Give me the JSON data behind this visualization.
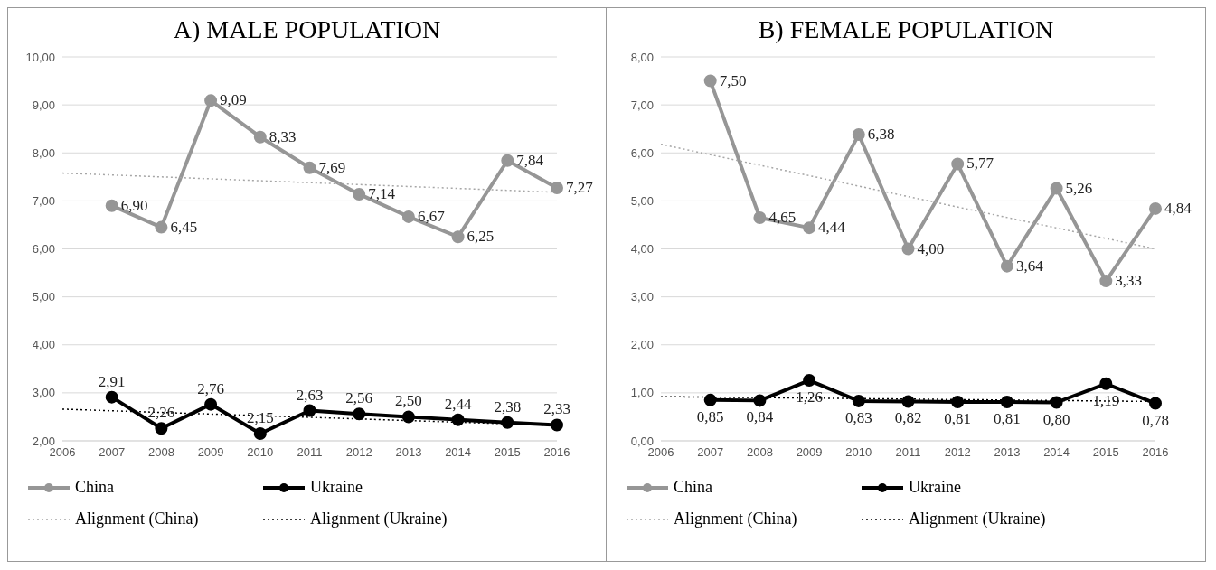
{
  "chart_data": [
    {
      "type": "line",
      "title": "A)  MALE POPULATION",
      "categories": [
        "2006",
        "2007",
        "2008",
        "2009",
        "2010",
        "2011",
        "2012",
        "2013",
        "2014",
        "2015",
        "2016"
      ],
      "ylim": [
        2,
        10
      ],
      "yticks": [
        {
          "value": 2,
          "label": "2,00"
        },
        {
          "value": 3,
          "label": "3,00"
        },
        {
          "value": 4,
          "label": "4,00"
        },
        {
          "value": 5,
          "label": "5,00"
        },
        {
          "value": 6,
          "label": "6,00"
        },
        {
          "value": 7,
          "label": "7,00"
        },
        {
          "value": 8,
          "label": "8,00"
        },
        {
          "value": 9,
          "label": "9,00"
        },
        {
          "value": 10,
          "label": "10,00"
        }
      ],
      "grid": "y",
      "legend": "bottom",
      "marker": "circle",
      "line_style": "solid",
      "series": [
        {
          "name": "China",
          "color": "#969696",
          "values": [
            null,
            6.9,
            6.45,
            9.09,
            8.33,
            7.69,
            7.14,
            6.67,
            6.25,
            7.84,
            7.27
          ],
          "value_labels": [
            null,
            "6,90",
            "6,45",
            "9,09",
            "8,33",
            "7,69",
            "7,14",
            "6,67",
            "6,25",
            "7,84",
            "7,27"
          ]
        },
        {
          "name": "Ukraine",
          "color": "#000000",
          "values": [
            null,
            2.91,
            2.26,
            2.76,
            2.15,
            2.63,
            2.56,
            2.5,
            2.44,
            2.38,
            2.33
          ],
          "value_labels": [
            null,
            "2,91",
            "2,26",
            "2,76",
            "2,15",
            "2,63",
            "2,56",
            "2,50",
            "2,44",
            "2,38",
            "2,33"
          ]
        },
        {
          "name": "Alignment (China)",
          "color": "#a6a6a6",
          "type": "line",
          "line_style": "dotted",
          "marker": "none",
          "values": [
            7.58,
            null,
            null,
            null,
            null,
            null,
            null,
            null,
            null,
            null,
            7.18
          ]
        },
        {
          "name": "Alignment (Ukraine)",
          "color": "#000000",
          "type": "line",
          "line_style": "dotted",
          "marker": "none",
          "values": [
            2.66,
            null,
            null,
            null,
            null,
            null,
            null,
            null,
            null,
            null,
            2.32
          ]
        }
      ]
    },
    {
      "type": "line",
      "title": "B)  FEMALE POPULATION",
      "categories": [
        "2006",
        "2007",
        "2008",
        "2009",
        "2010",
        "2011",
        "2012",
        "2013",
        "2014",
        "2015",
        "2016"
      ],
      "ylim": [
        0,
        8
      ],
      "yticks": [
        {
          "value": 0,
          "label": "0,00"
        },
        {
          "value": 1,
          "label": "1,00"
        },
        {
          "value": 2,
          "label": "2,00"
        },
        {
          "value": 3,
          "label": "3,00"
        },
        {
          "value": 4,
          "label": "4,00"
        },
        {
          "value": 5,
          "label": "5,00"
        },
        {
          "value": 6,
          "label": "6,00"
        },
        {
          "value": 7,
          "label": "7,00"
        },
        {
          "value": 8,
          "label": "8,00"
        }
      ],
      "grid": "y",
      "legend": "bottom",
      "marker": "circle",
      "line_style": "solid",
      "series": [
        {
          "name": "China",
          "color": "#969696",
          "values": [
            null,
            7.5,
            4.65,
            4.44,
            6.38,
            4.0,
            5.77,
            3.64,
            5.26,
            3.33,
            4.84
          ],
          "value_labels": [
            null,
            "7,50",
            "4,65",
            "4,44",
            "6,38",
            "4,00",
            "5,77",
            "3,64",
            "5,26",
            "3,33",
            "4,84"
          ]
        },
        {
          "name": "Ukraine",
          "color": "#000000",
          "values": [
            null,
            0.85,
            0.84,
            1.26,
            0.83,
            0.82,
            0.81,
            0.81,
            0.8,
            1.19,
            0.78
          ],
          "value_labels": [
            null,
            "0,85",
            "0,84",
            "1,26",
            "0,83",
            "0,82",
            "0,81",
            "0,81",
            "0,80",
            "1,19",
            "0,78"
          ]
        },
        {
          "name": "Alignment (China)",
          "color": "#a6a6a6",
          "type": "line",
          "line_style": "dotted",
          "marker": "none",
          "values": [
            6.18,
            null,
            null,
            null,
            null,
            null,
            null,
            null,
            null,
            null,
            4.0
          ]
        },
        {
          "name": "Alignment (Ukraine)",
          "color": "#000000",
          "type": "line",
          "line_style": "dotted",
          "marker": "none",
          "values": [
            0.92,
            null,
            null,
            null,
            null,
            null,
            null,
            null,
            null,
            null,
            0.82
          ]
        }
      ]
    }
  ]
}
